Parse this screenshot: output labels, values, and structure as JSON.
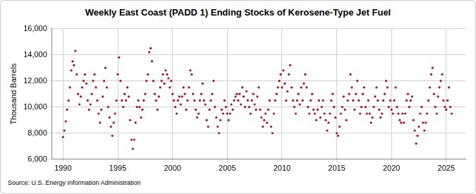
{
  "chart_data": {
    "type": "scatter",
    "title": "Weekly East Coast (PADD 1) Ending Stocks of Kerosene-Type Jet Fuel",
    "y_label": "Thousand Barrels",
    "source": "Source: U.S. Energy Information Administration",
    "color": "#a0141e",
    "marker": "circle",
    "grid": true,
    "xlim": [
      1989,
      2026.75
    ],
    "xticks": [
      1990,
      1995,
      2000,
      2005,
      2010,
      2015,
      2020,
      2025
    ],
    "ylim": [
      6000,
      16000
    ],
    "yticks": [
      {
        "value": 6000,
        "label": "6,000"
      },
      {
        "value": 8000,
        "label": "8,000"
      },
      {
        "value": 10000,
        "label": "10,000"
      },
      {
        "value": 12000,
        "label": "12,000"
      },
      {
        "value": 14000,
        "label": "14,000"
      },
      {
        "value": 16000,
        "label": "16,000"
      }
    ],
    "x": [
      1990,
      1990.125,
      1990.25,
      1990.375,
      1990.5,
      1990.625,
      1990.75,
      1990.875,
      1991,
      1991.125,
      1991.25,
      1991.375,
      1991.5,
      1991.625,
      1991.75,
      1991.875,
      1992,
      1992.125,
      1992.25,
      1992.375,
      1992.5,
      1992.625,
      1992.75,
      1992.875,
      1993,
      1993.125,
      1993.25,
      1993.375,
      1993.5,
      1993.625,
      1993.75,
      1993.875,
      1994,
      1994.125,
      1994.25,
      1994.375,
      1994.5,
      1994.625,
      1994.75,
      1994.875,
      1995,
      1995.125,
      1995.25,
      1995.375,
      1995.5,
      1995.625,
      1995.75,
      1995.875,
      1996,
      1996.125,
      1996.25,
      1996.375,
      1996.5,
      1996.625,
      1996.75,
      1996.875,
      1997,
      1997.125,
      1997.25,
      1997.375,
      1997.5,
      1997.625,
      1997.75,
      1997.875,
      1998,
      1998.125,
      1998.25,
      1998.375,
      1998.5,
      1998.625,
      1998.75,
      1998.875,
      1999,
      1999.125,
      1999.25,
      1999.375,
      1999.5,
      1999.625,
      1999.75,
      1999.875,
      2000,
      2000.125,
      2000.25,
      2000.375,
      2000.5,
      2000.625,
      2000.75,
      2000.875,
      2001,
      2001.125,
      2001.25,
      2001.375,
      2001.5,
      2001.625,
      2001.75,
      2001.875,
      2002,
      2002.125,
      2002.25,
      2002.375,
      2002.5,
      2002.625,
      2002.75,
      2002.875,
      2003,
      2003.125,
      2003.25,
      2003.375,
      2003.5,
      2003.625,
      2003.75,
      2003.875,
      2004,
      2004.125,
      2004.25,
      2004.375,
      2004.5,
      2004.625,
      2004.75,
      2004.875,
      2005,
      2005.125,
      2005.25,
      2005.375,
      2005.5,
      2005.625,
      2005.75,
      2005.875,
      2006,
      2006.125,
      2006.25,
      2006.375,
      2006.5,
      2006.625,
      2006.75,
      2006.875,
      2007,
      2007.125,
      2007.25,
      2007.375,
      2007.5,
      2007.625,
      2007.75,
      2007.875,
      2008,
      2008.125,
      2008.25,
      2008.375,
      2008.5,
      2008.625,
      2008.75,
      2008.875,
      2009,
      2009.125,
      2009.25,
      2009.375,
      2009.5,
      2009.625,
      2009.75,
      2009.875,
      2010,
      2010.125,
      2010.25,
      2010.375,
      2010.5,
      2010.625,
      2010.75,
      2010.875,
      2011,
      2011.125,
      2011.25,
      2011.375,
      2011.5,
      2011.625,
      2011.75,
      2011.875,
      2012,
      2012.125,
      2012.25,
      2012.375,
      2012.5,
      2012.625,
      2012.75,
      2012.875,
      2013,
      2013.125,
      2013.25,
      2013.375,
      2013.5,
      2013.625,
      2013.75,
      2013.875,
      2014,
      2014.125,
      2014.25,
      2014.375,
      2014.5,
      2014.625,
      2014.75,
      2014.875,
      2015,
      2015.125,
      2015.25,
      2015.375,
      2015.5,
      2015.625,
      2015.75,
      2015.875,
      2016,
      2016.125,
      2016.25,
      2016.375,
      2016.5,
      2016.625,
      2016.75,
      2016.875,
      2017,
      2017.125,
      2017.25,
      2017.375,
      2017.5,
      2017.625,
      2017.75,
      2017.875,
      2018,
      2018.125,
      2018.25,
      2018.375,
      2018.5,
      2018.625,
      2018.75,
      2018.875,
      2019,
      2019.125,
      2019.25,
      2019.375,
      2019.5,
      2019.625,
      2019.75,
      2019.875,
      2020,
      2020.125,
      2020.25,
      2020.375,
      2020.5,
      2020.625,
      2020.75,
      2020.875,
      2021,
      2021.125,
      2021.25,
      2021.375,
      2021.5,
      2021.625,
      2021.75,
      2021.875,
      2022,
      2022.125,
      2022.25,
      2022.375,
      2022.5,
      2022.625,
      2022.75,
      2022.875,
      2023,
      2023.125,
      2023.25,
      2023.375,
      2023.5,
      2023.625,
      2023.75,
      2023.875,
      2024,
      2024.125,
      2024.25,
      2024.375,
      2024.5,
      2024.625,
      2024.75,
      2024.875,
      2025,
      2025.125,
      2025.25,
      2025.375,
      2025.5
    ],
    "values": [
      7700,
      8200,
      8900,
      9800,
      10500,
      11500,
      12800,
      13500,
      13200,
      14300,
      12500,
      11000,
      10200,
      10800,
      11500,
      12000,
      12500,
      11800,
      10500,
      9800,
      10200,
      11000,
      12000,
      12500,
      11500,
      10500,
      9500,
      8800,
      9800,
      10800,
      12000,
      13000,
      11500,
      10000,
      9200,
      8500,
      7800,
      8800,
      9500,
      10500,
      12500,
      13800,
      12000,
      10500,
      10000,
      11000,
      10500,
      11500,
      10800,
      9000,
      7500,
      6800,
      7500,
      8800,
      10000,
      10500,
      10000,
      9200,
      9800,
      10500,
      11000,
      12000,
      12500,
      14200,
      14500,
      13500,
      12000,
      11000,
      10500,
      9800,
      10800,
      11500,
      12000,
      12500,
      11800,
      12800,
      12500,
      12200,
      11500,
      12000,
      11000,
      10500,
      10000,
      9500,
      10500,
      10800,
      10200,
      10800,
      11500,
      11000,
      9800,
      10500,
      11500,
      12800,
      12500,
      11000,
      10500,
      9800,
      9200,
      9500,
      10500,
      11000,
      11800,
      10500,
      10200,
      9000,
      8500,
      9800,
      10500,
      11000,
      12000,
      10000,
      9200,
      8500,
      8000,
      9000,
      9800,
      9500,
      10500,
      10000,
      9500,
      9000,
      9500,
      10200,
      9800,
      10500,
      10800,
      11000,
      10500,
      11000,
      10200,
      11500,
      10800,
      10000,
      11200,
      10500,
      10000,
      9500,
      10500,
      11000,
      10200,
      9800,
      10800,
      11500,
      9800,
      9200,
      8500,
      9000,
      9500,
      8800,
      9800,
      10500,
      8500,
      8000,
      9500,
      10500,
      11000,
      11500,
      12000,
      12500,
      11500,
      12800,
      11800,
      10500,
      11200,
      12500,
      13200,
      11500,
      10500,
      10000,
      9500,
      10500,
      11000,
      10200,
      11500,
      10500,
      11800,
      12500,
      11500,
      10000,
      9500,
      10500,
      11000,
      9800,
      9500,
      9000,
      9800,
      10500,
      9200,
      10000,
      10500,
      9500,
      9000,
      8200,
      8800,
      9500,
      10500,
      11000,
      10000,
      9200,
      8000,
      7800,
      8500,
      9500,
      10000,
      10800,
      9800,
      9000,
      10500,
      11000,
      12500,
      11500,
      10500,
      9800,
      11000,
      12000,
      10500,
      9500,
      10000,
      11000,
      11500,
      10000,
      9500,
      10500,
      9500,
      8800,
      9200,
      10000,
      10800,
      11500,
      10500,
      9800,
      9200,
      9500,
      10500,
      11000,
      12000,
      11500,
      10000,
      10500,
      9800,
      9500,
      10500,
      11500,
      10000,
      9500,
      9000,
      8800,
      9500,
      8800,
      9500,
      10500,
      11000,
      10000,
      10500,
      10800,
      9000,
      8200,
      7200,
      7800,
      8500,
      9500,
      10000,
      8800,
      8200,
      8800,
      9500,
      10500,
      11500,
      12500,
      13000,
      11000,
      10000,
      9500,
      10800,
      11500,
      12000,
      12500,
      10500,
      10000,
      9800,
      10500,
      11500,
      10000,
      9500
    ]
  }
}
